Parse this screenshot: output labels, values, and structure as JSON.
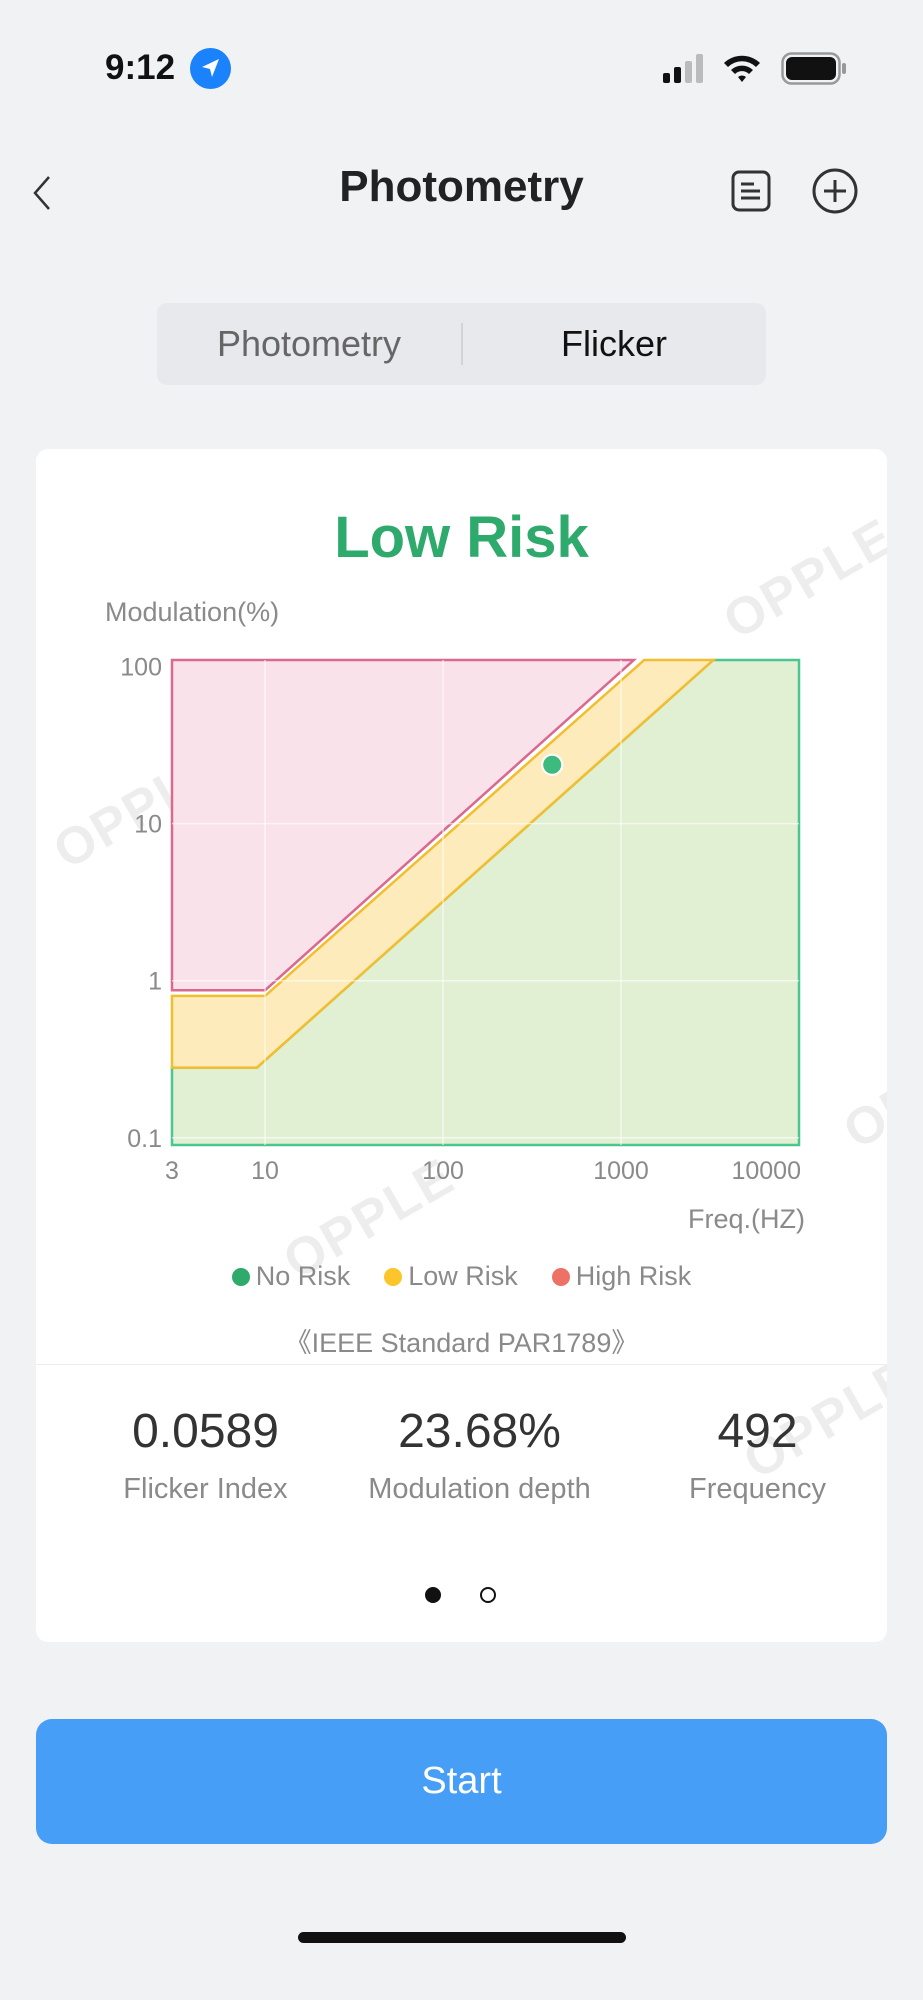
{
  "status_bar": {
    "time": "9:12",
    "location_icon": "location-arrow-icon",
    "signal_icon": "cellular-signal-icon",
    "wifi_icon": "wifi-icon",
    "battery_icon": "battery-icon"
  },
  "nav": {
    "title": "Photometry",
    "back_icon": "chevron-left-icon",
    "report_icon": "document-list-icon",
    "add_icon": "plus-circle-icon"
  },
  "tabs": [
    {
      "label": "Photometry",
      "active": false
    },
    {
      "label": "Flicker",
      "active": true
    }
  ],
  "card": {
    "risk_title": "Low Risk",
    "risk_color": "#2eaa6c",
    "legend": [
      {
        "label": "No Risk",
        "color": "#2eaa6c"
      },
      {
        "label": "Low Risk",
        "color": "#fcc52a"
      },
      {
        "label": "High Risk",
        "color": "#ee7166"
      }
    ],
    "standard": "《IEEE Standard PAR1789》",
    "metrics": [
      {
        "value": "0.0589",
        "label": "Flicker Index"
      },
      {
        "value": "23.68%",
        "label": "Modulation depth"
      },
      {
        "value": "492",
        "label": "Frequency"
      }
    ],
    "pager": {
      "count": 2,
      "active": 1
    },
    "watermark": "OPPLE"
  },
  "chart_data": {
    "type": "area",
    "xlabel": "Freq.(HZ)",
    "ylabel": "Modulation(%)",
    "x_scale": "log",
    "y_scale": "log",
    "xlim": [
      3,
      10000
    ],
    "ylim": [
      0.09,
      110
    ],
    "x_ticks": [
      {
        "value": 3,
        "label": "3"
      },
      {
        "value": 10,
        "label": "10"
      },
      {
        "value": 100,
        "label": "100"
      },
      {
        "value": 1000,
        "label": "1000"
      },
      {
        "value": 10000,
        "label": "10000"
      }
    ],
    "y_ticks": [
      {
        "value": 0.1,
        "label": "0.1"
      },
      {
        "value": 1,
        "label": "1"
      },
      {
        "value": 10,
        "label": "10"
      },
      {
        "value": 100,
        "label": "100"
      }
    ],
    "grid": true,
    "legend_position": "bottom",
    "regions": [
      {
        "name": "No Risk",
        "fill": "#e1efd3",
        "stroke": "#4cc68e",
        "boundary": [
          [
            3,
            0.28
          ],
          [
            9,
            0.28
          ],
          [
            3300,
            110
          ]
        ]
      },
      {
        "name": "Low Risk",
        "fill": "#fdebbb",
        "stroke": "#f2bd2e",
        "boundary": [
          [
            3,
            0.8
          ],
          [
            10,
            0.8
          ],
          [
            1350,
            110
          ]
        ]
      },
      {
        "name": "High Risk",
        "fill": "#f9e2ea",
        "stroke": "#d9698f",
        "boundary": [
          [
            3,
            0.87
          ],
          [
            10,
            0.87
          ],
          [
            1180,
            110
          ]
        ]
      }
    ],
    "measurement": {
      "frequency": 492,
      "modulation": 23.68,
      "color": "#3dba7e"
    }
  },
  "start_button": {
    "label": "Start",
    "color": "#479ef7"
  }
}
